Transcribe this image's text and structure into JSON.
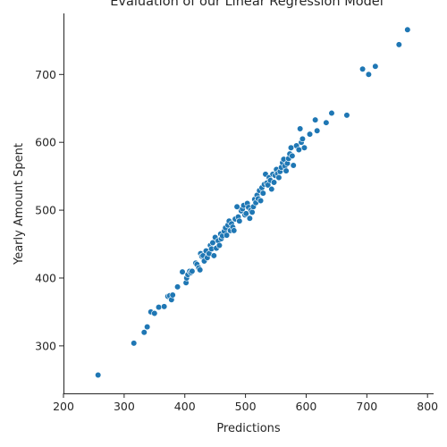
{
  "chart_data": {
    "type": "scatter",
    "title": "Evaluation of our Linear Regression Model",
    "xlabel": "Predictions",
    "ylabel": "Yearly Amount Spent",
    "xlim": [
      200,
      810
    ],
    "ylim": [
      230,
      790
    ],
    "xticks": [
      200,
      300,
      400,
      500,
      600,
      700,
      800
    ],
    "yticks": [
      300,
      400,
      500,
      600,
      700
    ],
    "grid": false,
    "point_color": "#1f77b4",
    "points": [
      [
        257,
        257
      ],
      [
        316,
        304
      ],
      [
        333,
        320
      ],
      [
        338,
        328
      ],
      [
        344,
        350
      ],
      [
        350,
        348
      ],
      [
        357,
        357
      ],
      [
        366,
        358
      ],
      [
        372,
        373
      ],
      [
        375,
        374
      ],
      [
        378,
        368
      ],
      [
        380,
        375
      ],
      [
        388,
        387
      ],
      [
        396,
        409
      ],
      [
        402,
        393
      ],
      [
        403,
        400
      ],
      [
        405,
        405
      ],
      [
        408,
        410
      ],
      [
        410,
        408
      ],
      [
        412,
        410
      ],
      [
        418,
        422
      ],
      [
        420,
        420
      ],
      [
        423,
        415
      ],
      [
        425,
        412
      ],
      [
        426,
        436
      ],
      [
        428,
        432
      ],
      [
        430,
        433
      ],
      [
        432,
        425
      ],
      [
        435,
        440
      ],
      [
        437,
        430
      ],
      [
        440,
        436
      ],
      [
        442,
        448
      ],
      [
        444,
        443
      ],
      [
        446,
        452
      ],
      [
        448,
        433
      ],
      [
        450,
        460
      ],
      [
        452,
        444
      ],
      [
        455,
        455
      ],
      [
        457,
        448
      ],
      [
        459,
        465
      ],
      [
        460,
        458
      ],
      [
        462,
        462
      ],
      [
        465,
        469
      ],
      [
        467,
        474
      ],
      [
        469,
        463
      ],
      [
        471,
        478
      ],
      [
        473,
        484
      ],
      [
        475,
        470
      ],
      [
        477,
        480
      ],
      [
        479,
        475
      ],
      [
        481,
        470
      ],
      [
        483,
        487
      ],
      [
        486,
        505
      ],
      [
        488,
        490
      ],
      [
        490,
        484
      ],
      [
        493,
        499
      ],
      [
        495,
        502
      ],
      [
        497,
        507
      ],
      [
        499,
        493
      ],
      [
        501,
        495
      ],
      [
        503,
        510
      ],
      [
        505,
        504
      ],
      [
        507,
        488
      ],
      [
        509,
        500
      ],
      [
        511,
        497
      ],
      [
        513,
        505
      ],
      [
        515,
        516
      ],
      [
        517,
        511
      ],
      [
        519,
        522
      ],
      [
        521,
        517
      ],
      [
        523,
        529
      ],
      [
        525,
        514
      ],
      [
        527,
        533
      ],
      [
        529,
        525
      ],
      [
        531,
        538
      ],
      [
        533,
        553
      ],
      [
        535,
        540
      ],
      [
        537,
        537
      ],
      [
        539,
        548
      ],
      [
        541,
        544
      ],
      [
        543,
        531
      ],
      [
        545,
        553
      ],
      [
        547,
        541
      ],
      [
        549,
        551
      ],
      [
        551,
        560
      ],
      [
        553,
        554
      ],
      [
        555,
        548
      ],
      [
        557,
        557
      ],
      [
        559,
        563
      ],
      [
        561,
        570
      ],
      [
        563,
        575
      ],
      [
        565,
        565
      ],
      [
        567,
        558
      ],
      [
        569,
        569
      ],
      [
        571,
        576
      ],
      [
        573,
        583
      ],
      [
        575,
        592
      ],
      [
        577,
        580
      ],
      [
        579,
        566
      ],
      [
        584,
        595
      ],
      [
        588,
        589
      ],
      [
        590,
        620
      ],
      [
        592,
        600
      ],
      [
        594,
        605
      ],
      [
        597,
        592
      ],
      [
        606,
        612
      ],
      [
        615,
        633
      ],
      [
        618,
        617
      ],
      [
        633,
        629
      ],
      [
        642,
        643
      ],
      [
        667,
        640
      ],
      [
        693,
        708
      ],
      [
        703,
        700
      ],
      [
        714,
        712
      ],
      [
        753,
        744
      ],
      [
        767,
        766
      ]
    ]
  }
}
